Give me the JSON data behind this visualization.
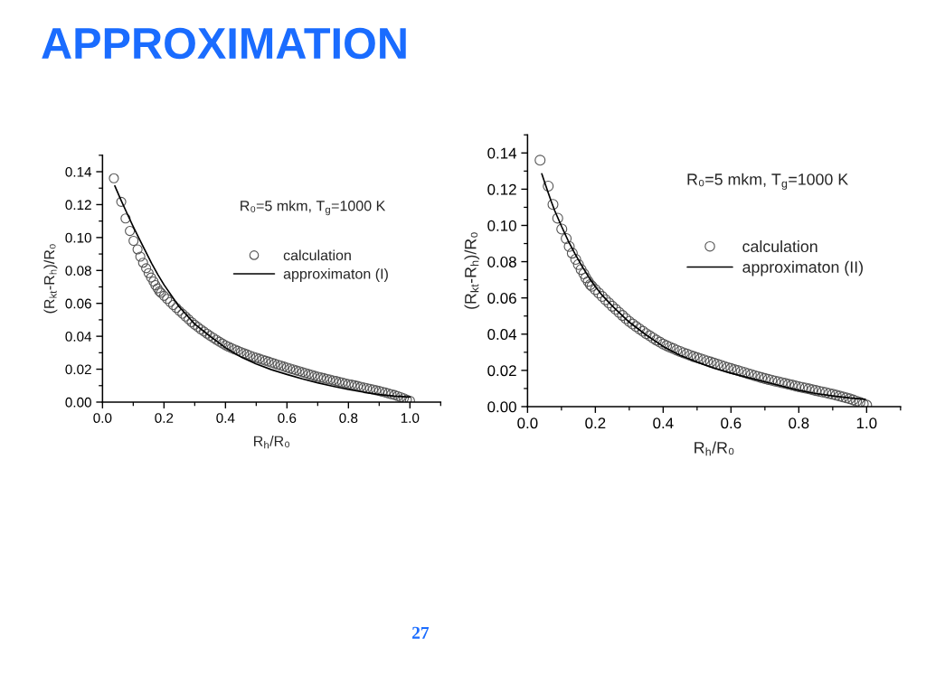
{
  "chart_data": [
    {
      "type": "other",
      "title": "APPROXIMATION",
      "annotations": [
        "27"
      ]
    },
    {
      "type": "scatter",
      "xlabel": "R$_{h}$/R₀",
      "ylabel": "(R$_{kt}$-R$_{h}$)/R₀",
      "annotations": [
        "R₀=5 mkm, T$_{g}$=1000 K"
      ],
      "legend": "top right",
      "xlim": [
        0,
        1.1
      ],
      "ylim": [
        0,
        0.15
      ],
      "xticks": [
        {
          "value": 0,
          "label": "0.0"
        },
        {
          "value": 0.1,
          "label": null
        },
        {
          "value": 0.2,
          "label": "0.2"
        },
        {
          "value": 0.3,
          "label": null
        },
        {
          "value": 0.4,
          "label": "0.4"
        },
        {
          "value": 0.5,
          "label": null
        },
        {
          "value": 0.6,
          "label": "0.6"
        },
        {
          "value": 0.7,
          "label": null
        },
        {
          "value": 0.8,
          "label": "0.8"
        },
        {
          "value": 0.9,
          "label": null
        },
        {
          "value": 1.0,
          "label": "1.0"
        },
        {
          "value": 1.1,
          "label": null
        }
      ],
      "yticks": [
        {
          "value": 0,
          "label": "0.00"
        },
        {
          "value": 0.01,
          "label": null
        },
        {
          "value": 0.02,
          "label": "0.02"
        },
        {
          "value": 0.03,
          "label": null
        },
        {
          "value": 0.04,
          "label": "0.04"
        },
        {
          "value": 0.05,
          "label": null
        },
        {
          "value": 0.06,
          "label": "0.06"
        },
        {
          "value": 0.07,
          "label": null
        },
        {
          "value": 0.08,
          "label": "0.08"
        },
        {
          "value": 0.09,
          "label": null
        },
        {
          "value": 0.1,
          "label": "0.10"
        },
        {
          "value": 0.11,
          "label": null
        },
        {
          "value": 0.12,
          "label": "0.12"
        },
        {
          "value": 0.13,
          "label": null
        },
        {
          "value": 0.14,
          "label": "0.14"
        },
        {
          "value": 0.15,
          "label": null
        }
      ],
      "series": [
        {
          "name": "calculation",
          "type": "scatter",
          "marker": "circle",
          "color": "#555555",
          "x": [
            0.037,
            0.061,
            0.075,
            0.089,
            0.101,
            0.114,
            0.123,
            0.132,
            0.142,
            0.15,
            0.158,
            0.166,
            0.172,
            0.179,
            0.185,
            0.19,
            0.2,
            0.21,
            0.22,
            0.23,
            0.24,
            0.25,
            0.26,
            0.27,
            0.28,
            0.29,
            0.3,
            0.31,
            0.32,
            0.33,
            0.34,
            0.35,
            0.36,
            0.37,
            0.38,
            0.39,
            0.4,
            0.41,
            0.42,
            0.43,
            0.44,
            0.45,
            0.46,
            0.47,
            0.48,
            0.49,
            0.5,
            0.51,
            0.52,
            0.53,
            0.54,
            0.55,
            0.56,
            0.57,
            0.58,
            0.59,
            0.6,
            0.61,
            0.62,
            0.63,
            0.64,
            0.65,
            0.66,
            0.67,
            0.68,
            0.69,
            0.7,
            0.71,
            0.72,
            0.73,
            0.74,
            0.75,
            0.76,
            0.77,
            0.78,
            0.79,
            0.8,
            0.81,
            0.82,
            0.83,
            0.84,
            0.85,
            0.86,
            0.87,
            0.88,
            0.89,
            0.9,
            0.91,
            0.92,
            0.93,
            0.94,
            0.95,
            0.96,
            0.97,
            0.98,
            0.99,
            1.0
          ],
          "values": [
            0.136,
            0.1217,
            0.1116,
            0.104,
            0.098,
            0.0928,
            0.0884,
            0.0847,
            0.0813,
            0.0784,
            0.0757,
            0.0733,
            0.0711,
            0.0691,
            0.0673,
            0.0664,
            0.0646,
            0.0627,
            0.0608,
            0.059,
            0.0572,
            0.0554,
            0.0537,
            0.052,
            0.0503,
            0.0486,
            0.047,
            0.0456,
            0.0442,
            0.0429,
            0.0416,
            0.0403,
            0.0391,
            0.0379,
            0.0367,
            0.0356,
            0.0345,
            0.0336,
            0.0328,
            0.032,
            0.0312,
            0.0304,
            0.0297,
            0.029,
            0.0283,
            0.0276,
            0.027,
            0.0264,
            0.0258,
            0.0252,
            0.0246,
            0.024,
            0.0234,
            0.0228,
            0.0222,
            0.0216,
            0.021,
            0.0204,
            0.0199,
            0.0193,
            0.0188,
            0.0182,
            0.0177,
            0.0171,
            0.0166,
            0.016,
            0.0155,
            0.015,
            0.0146,
            0.0141,
            0.0137,
            0.0132,
            0.0128,
            0.0123,
            0.0119,
            0.0114,
            0.011,
            0.0106,
            0.0102,
            0.0098,
            0.0093,
            0.0089,
            0.0085,
            0.0081,
            0.0077,
            0.0072,
            0.0068,
            0.0063,
            0.0058,
            0.0053,
            0.0048,
            0.0043,
            0.0037,
            0.003,
            0.0023,
            0.0015,
            0.0008
          ]
        },
        {
          "name": "approximaton (I)",
          "type": "line",
          "color": "#000000",
          "x": [
            0.04,
            0.06,
            0.08,
            0.1,
            0.12,
            0.14,
            0.16,
            0.18,
            0.2,
            0.25,
            0.3,
            0.35,
            0.4,
            0.45,
            0.5,
            0.55,
            0.6,
            0.65,
            0.7,
            0.75,
            0.8,
            0.85,
            0.9,
            0.95,
            1.0
          ],
          "values": [
            0.1314,
            0.1228,
            0.1146,
            0.1066,
            0.099,
            0.0916,
            0.0842,
            0.0775,
            0.0713,
            0.0578,
            0.0474,
            0.04,
            0.033,
            0.0275,
            0.0232,
            0.0197,
            0.0168,
            0.0141,
            0.0117,
            0.0096,
            0.0077,
            0.006,
            0.0046,
            0.0036,
            0.0031
          ]
        }
      ]
    },
    {
      "type": "scatter",
      "xlabel": "R$_{h}$/R₀",
      "ylabel": "(R$_{kt}$-R$_{h}$)/R₀",
      "annotations": [
        "R₀=5 mkm, T$_{g}$=1000 K"
      ],
      "legend": "top right",
      "xlim": [
        0,
        1.1
      ],
      "ylim": [
        0,
        0.15
      ],
      "xticks": [
        {
          "value": 0,
          "label": "0.0"
        },
        {
          "value": 0.1,
          "label": null
        },
        {
          "value": 0.2,
          "label": "0.2"
        },
        {
          "value": 0.3,
          "label": null
        },
        {
          "value": 0.4,
          "label": "0.4"
        },
        {
          "value": 0.5,
          "label": null
        },
        {
          "value": 0.6,
          "label": "0.6"
        },
        {
          "value": 0.7,
          "label": null
        },
        {
          "value": 0.8,
          "label": "0.8"
        },
        {
          "value": 0.9,
          "label": null
        },
        {
          "value": 1.0,
          "label": "1.0"
        },
        {
          "value": 1.1,
          "label": null
        }
      ],
      "yticks": [
        {
          "value": 0,
          "label": "0.00"
        },
        {
          "value": 0.01,
          "label": null
        },
        {
          "value": 0.02,
          "label": "0.02"
        },
        {
          "value": 0.03,
          "label": null
        },
        {
          "value": 0.04,
          "label": "0.04"
        },
        {
          "value": 0.05,
          "label": null
        },
        {
          "value": 0.06,
          "label": "0.06"
        },
        {
          "value": 0.07,
          "label": null
        },
        {
          "value": 0.08,
          "label": "0.08"
        },
        {
          "value": 0.09,
          "label": null
        },
        {
          "value": 0.1,
          "label": "0.10"
        },
        {
          "value": 0.11,
          "label": null
        },
        {
          "value": 0.12,
          "label": "0.12"
        },
        {
          "value": 0.13,
          "label": null
        },
        {
          "value": 0.14,
          "label": "0.14"
        },
        {
          "value": 0.15,
          "label": null
        }
      ],
      "series": [
        {
          "name": "calculation",
          "type": "scatter",
          "marker": "circle",
          "color": "#555555",
          "x": [
            0.037,
            0.061,
            0.075,
            0.089,
            0.101,
            0.114,
            0.123,
            0.132,
            0.142,
            0.15,
            0.158,
            0.166,
            0.172,
            0.179,
            0.185,
            0.19,
            0.2,
            0.21,
            0.22,
            0.23,
            0.24,
            0.25,
            0.26,
            0.27,
            0.28,
            0.29,
            0.3,
            0.31,
            0.32,
            0.33,
            0.34,
            0.35,
            0.36,
            0.37,
            0.38,
            0.39,
            0.4,
            0.41,
            0.42,
            0.43,
            0.44,
            0.45,
            0.46,
            0.47,
            0.48,
            0.49,
            0.5,
            0.51,
            0.52,
            0.53,
            0.54,
            0.55,
            0.56,
            0.57,
            0.58,
            0.59,
            0.6,
            0.61,
            0.62,
            0.63,
            0.64,
            0.65,
            0.66,
            0.67,
            0.68,
            0.69,
            0.7,
            0.71,
            0.72,
            0.73,
            0.74,
            0.75,
            0.76,
            0.77,
            0.78,
            0.79,
            0.8,
            0.81,
            0.82,
            0.83,
            0.84,
            0.85,
            0.86,
            0.87,
            0.88,
            0.89,
            0.9,
            0.91,
            0.92,
            0.93,
            0.94,
            0.95,
            0.96,
            0.97,
            0.98,
            0.99,
            1.0
          ],
          "values": [
            0.136,
            0.1217,
            0.1116,
            0.104,
            0.098,
            0.0928,
            0.0884,
            0.0847,
            0.0813,
            0.0784,
            0.0757,
            0.0733,
            0.0711,
            0.0691,
            0.0673,
            0.0664,
            0.0646,
            0.0627,
            0.0608,
            0.059,
            0.0572,
            0.0554,
            0.0537,
            0.052,
            0.0503,
            0.0486,
            0.047,
            0.0456,
            0.0442,
            0.0429,
            0.0416,
            0.0403,
            0.0391,
            0.0379,
            0.0367,
            0.0356,
            0.0345,
            0.0336,
            0.0328,
            0.032,
            0.0312,
            0.0304,
            0.0297,
            0.029,
            0.0283,
            0.0276,
            0.027,
            0.0264,
            0.0258,
            0.0252,
            0.0246,
            0.024,
            0.0234,
            0.0228,
            0.0222,
            0.0216,
            0.021,
            0.0204,
            0.0199,
            0.0193,
            0.0188,
            0.0182,
            0.0177,
            0.0171,
            0.0166,
            0.016,
            0.0155,
            0.015,
            0.0146,
            0.0141,
            0.0137,
            0.0132,
            0.0128,
            0.0123,
            0.0119,
            0.0114,
            0.011,
            0.0106,
            0.0102,
            0.0098,
            0.0093,
            0.0089,
            0.0085,
            0.0081,
            0.0077,
            0.0072,
            0.0068,
            0.0063,
            0.0058,
            0.0053,
            0.0048,
            0.0043,
            0.0037,
            0.003,
            0.0023,
            0.0015,
            0.0008
          ]
        },
        {
          "name": "approximaton (II)",
          "type": "line",
          "color": "#000000",
          "x": [
            0.042,
            0.05,
            0.06,
            0.07,
            0.08,
            0.1,
            0.12,
            0.14,
            0.16,
            0.18,
            0.2,
            0.22,
            0.25,
            0.3,
            0.35,
            0.4,
            0.45,
            0.5,
            0.55,
            0.6,
            0.65,
            0.7,
            0.75,
            0.8,
            0.85,
            0.9,
            0.95,
            0.996
          ],
          "values": [
            0.1285,
            0.124,
            0.1186,
            0.1132,
            0.1082,
            0.0996,
            0.0915,
            0.0843,
            0.0777,
            0.0716,
            0.0662,
            0.0615,
            0.0555,
            0.0466,
            0.0395,
            0.0332,
            0.0283,
            0.0246,
            0.0212,
            0.0185,
            0.016,
            0.0137,
            0.0113,
            0.009,
            0.0072,
            0.0059,
            0.0048,
            0.004
          ]
        }
      ]
    }
  ]
}
